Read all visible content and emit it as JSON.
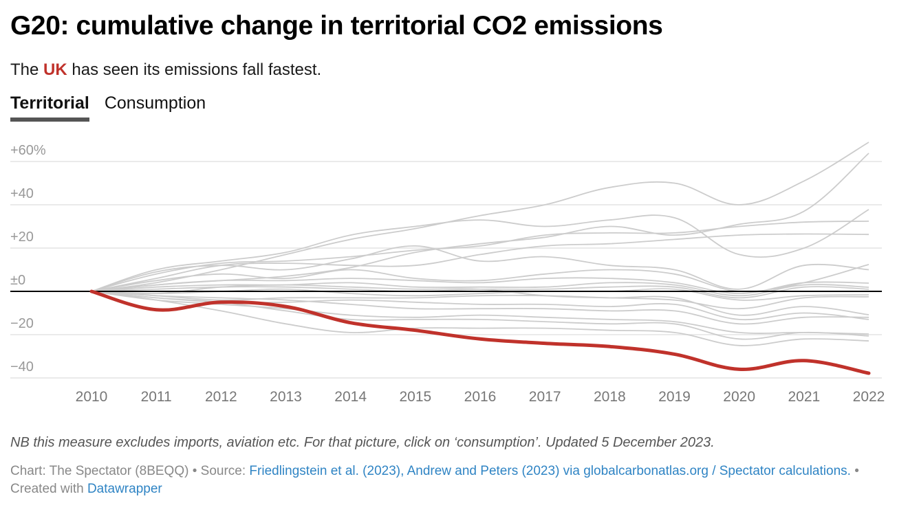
{
  "header": {
    "title": "G20: cumulative change in territorial CO2 emissions",
    "subtitle_before": "The ",
    "subtitle_highlight": "UK",
    "subtitle_after": " has seen its emissions fall fastest.",
    "highlight_color": "#c0322b"
  },
  "tabs": [
    {
      "label": "Territorial",
      "active": true
    },
    {
      "label": "Consumption",
      "active": false
    }
  ],
  "chart_data": {
    "type": "line",
    "title": "G20: cumulative change in territorial CO2 emissions",
    "xlabel": "",
    "ylabel": "",
    "x": [
      2010,
      2011,
      2012,
      2013,
      2014,
      2015,
      2016,
      2017,
      2018,
      2019,
      2020,
      2021,
      2022
    ],
    "x_tick_labels": [
      "2010",
      "2011",
      "2012",
      "2013",
      "2014",
      "2015",
      "2016",
      "2017",
      "2018",
      "2019",
      "2020",
      "2021",
      "2022"
    ],
    "ylim": [
      -42,
      62
    ],
    "y_ticks": [
      60,
      40,
      20,
      0,
      -20,
      -40
    ],
    "y_tick_labels": [
      "+60%",
      "+40",
      "+20",
      "±0",
      "−20",
      "−40"
    ],
    "grid": true,
    "legend": "none",
    "colors": {
      "highlight": "#c0322b",
      "other": "#cccccc",
      "baseline": "#000000",
      "grid": "#e3e3e3"
    },
    "highlight_series": {
      "name": "UK",
      "values": [
        0,
        -8.5,
        -5,
        -7,
        -14.5,
        -18,
        -22,
        -24,
        -25.5,
        -29,
        -36,
        -32,
        -37.8
      ]
    },
    "series": [
      {
        "name": "series-1",
        "values": [
          0,
          4,
          10,
          17,
          24,
          29,
          35,
          40,
          48,
          50,
          40,
          51,
          68.9
        ]
      },
      {
        "name": "series-2",
        "values": [
          0,
          3,
          5,
          7,
          11,
          18,
          22,
          25,
          30,
          26,
          31,
          37,
          63.8
        ]
      },
      {
        "name": "series-3",
        "values": [
          0,
          10,
          14,
          18,
          26,
          30,
          33,
          30,
          33,
          34,
          17,
          20,
          37.8
        ]
      },
      {
        "name": "series-4",
        "values": [
          0,
          8,
          13,
          14,
          16,
          19,
          21,
          26,
          27,
          27,
          30,
          32,
          32.4
        ]
      },
      {
        "name": "series-5",
        "values": [
          0,
          6,
          12,
          13,
          12,
          12,
          17,
          21,
          22,
          24,
          26,
          26.5,
          26.3
        ]
      },
      {
        "name": "series-6",
        "values": [
          0,
          9,
          12,
          10,
          15,
          21,
          14,
          16,
          12,
          10,
          1,
          12,
          10
        ]
      },
      {
        "name": "series-7",
        "values": [
          0,
          5,
          8,
          6,
          10,
          6,
          5,
          8,
          10,
          8,
          0,
          4,
          12.4
        ]
      },
      {
        "name": "series-8",
        "values": [
          0,
          3,
          5,
          5,
          6,
          5,
          4,
          6,
          6,
          4,
          -1,
          4,
          3.8
        ]
      },
      {
        "name": "series-9",
        "values": [
          0,
          2,
          3,
          3,
          4,
          2,
          2,
          2,
          4,
          3,
          -2,
          3,
          1.9
        ]
      },
      {
        "name": "series-10",
        "values": [
          0,
          1,
          2,
          2,
          1,
          0,
          1,
          1,
          2,
          2,
          -3,
          2,
          1
        ]
      },
      {
        "name": "series-11",
        "values": [
          0,
          -1,
          0,
          1,
          -1,
          -2,
          -1,
          0,
          0,
          1,
          -4,
          -2,
          -1.6
        ]
      },
      {
        "name": "series-12",
        "values": [
          0,
          -2,
          -4,
          -3,
          -3,
          -3,
          -2,
          -2,
          -3,
          -4,
          -8,
          -3,
          -2.5
        ]
      },
      {
        "name": "series-13",
        "values": [
          0,
          -1,
          2,
          3,
          2,
          1,
          1,
          -2,
          -3,
          -3,
          -11,
          -7,
          -10.8
        ]
      },
      {
        "name": "series-14",
        "values": [
          0,
          -3,
          -5,
          -5,
          -4,
          -5,
          -6,
          -6,
          -7,
          -6,
          -13,
          -10,
          -13
        ]
      },
      {
        "name": "series-15",
        "values": [
          0,
          -2,
          -3,
          -4,
          -6,
          -8,
          -8,
          -8,
          -9,
          -9,
          -15,
          -12,
          -12
        ]
      },
      {
        "name": "series-16",
        "values": [
          0,
          -4,
          -6,
          -8,
          -11,
          -12,
          -11,
          -12,
          -13,
          -14,
          -19,
          -19,
          -19.7
        ]
      },
      {
        "name": "series-17",
        "values": [
          0,
          -3,
          -5,
          -9,
          -13,
          -13,
          -13,
          -14,
          -15,
          -15,
          -22,
          -19,
          -20.6
        ]
      },
      {
        "name": "series-18",
        "values": [
          0,
          -4,
          -9,
          -15,
          -19,
          -17,
          -17,
          -17,
          -18,
          -19,
          -25,
          -22,
          -22.9
        ]
      }
    ]
  },
  "footer": {
    "note": "NB this measure excludes imports, aviation etc. For that picture, click on ‘consumption’. Updated 5 December 2023.",
    "chart_credit": "Chart: The Spectator (8BEQQ)",
    "separator": " • ",
    "source_label": "Source: ",
    "source_link": "Friedlingstein et al. (2023), Andrew and Peters (2023) via globalcarbonatlas.org / Spectator calculations.",
    "created_label": "Created with ",
    "created_link": "Datawrapper"
  }
}
